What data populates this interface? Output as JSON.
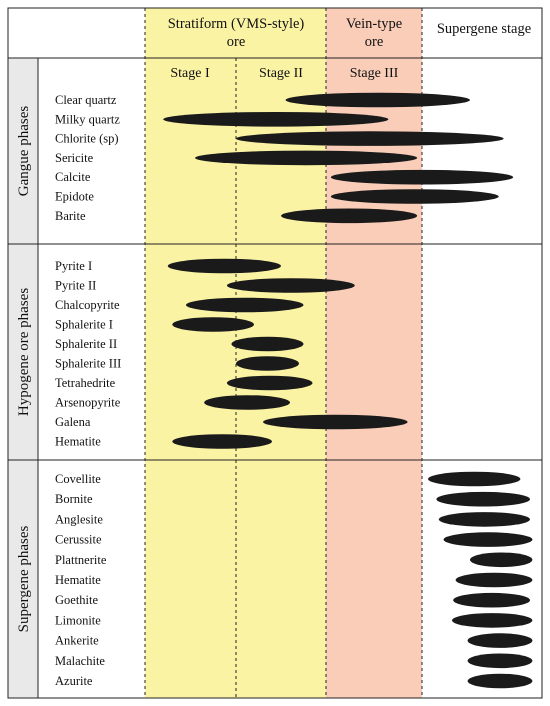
{
  "headers": {
    "stratiform_line1": "Stratiform (VMS-style)",
    "stratiform_line2": "ore",
    "vein_line1": "Vein-type",
    "vein_line2": "ore",
    "supergene": "Supergene stage",
    "stage1": "Stage I",
    "stage2": "Stage II",
    "stage3": "Stage III"
  },
  "colors": {
    "stratiform_fill": "#fbf3a4",
    "vein_fill": "#f9cdb8",
    "group_label_fill": "#e9e9e9",
    "bar_fill": "#1a1a1a"
  },
  "groups": [
    {
      "id": "gangue",
      "label": "Gangue phases",
      "minerals": [
        {
          "name": "Clear quartz",
          "start": 1.55,
          "end": 3.5
        },
        {
          "name": "Milky quartz",
          "start": 0.2,
          "end": 2.65
        },
        {
          "name": "Chlorite (sp)",
          "start": 1.0,
          "end": 3.85
        },
        {
          "name": "Sericite",
          "start": 0.55,
          "end": 2.95
        },
        {
          "name": "Calcite",
          "start": 2.05,
          "end": 3.95
        },
        {
          "name": "Epidote",
          "start": 2.05,
          "end": 3.8
        },
        {
          "name": "Barite",
          "start": 1.5,
          "end": 2.95
        }
      ]
    },
    {
      "id": "hypogene",
      "label": "Hypogene ore phases",
      "minerals": [
        {
          "name": "Pyrite I",
          "start": 0.25,
          "end": 1.5
        },
        {
          "name": "Pyrite II",
          "start": 0.9,
          "end": 2.3
        },
        {
          "name": "Chalcopyrite",
          "start": 0.45,
          "end": 1.75
        },
        {
          "name": "Sphalerite I",
          "start": 0.3,
          "end": 1.2
        },
        {
          "name": "Sphalerite II",
          "start": 0.95,
          "end": 1.75
        },
        {
          "name": "Sphalerite III",
          "start": 1.0,
          "end": 1.7
        },
        {
          "name": "Tetrahedrite",
          "start": 0.9,
          "end": 1.85
        },
        {
          "name": "Arsenopyrite",
          "start": 0.65,
          "end": 1.6
        },
        {
          "name": "Galena",
          "start": 1.3,
          "end": 2.85
        },
        {
          "name": "Hematite",
          "start": 0.3,
          "end": 1.4
        }
      ]
    },
    {
      "id": "supergene",
      "label": "Supergene phases",
      "minerals": [
        {
          "name": "Covellite",
          "start": 0.05,
          "end": 0.82
        },
        {
          "name": "Bornite",
          "start": 0.12,
          "end": 0.9
        },
        {
          "name": "Anglesite",
          "start": 0.14,
          "end": 0.9
        },
        {
          "name": "Cerussite",
          "start": 0.18,
          "end": 0.92
        },
        {
          "name": "Plattnerite",
          "start": 0.4,
          "end": 0.92
        },
        {
          "name": "Hematite",
          "start": 0.28,
          "end": 0.92
        },
        {
          "name": "Goethite",
          "start": 0.26,
          "end": 0.9
        },
        {
          "name": "Limonite",
          "start": 0.25,
          "end": 0.92
        },
        {
          "name": "Ankerite",
          "start": 0.38,
          "end": 0.92
        },
        {
          "name": "Malachite",
          "start": 0.38,
          "end": 0.92
        },
        {
          "name": "Azurite",
          "start": 0.38,
          "end": 0.92
        }
      ]
    }
  ]
}
